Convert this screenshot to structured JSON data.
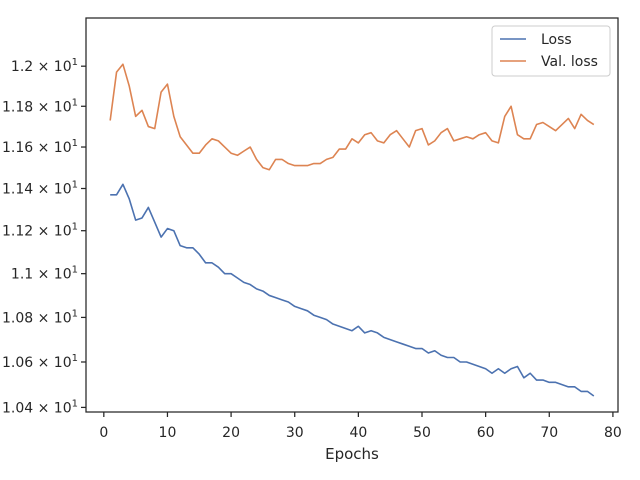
{
  "chart_data": {
    "type": "line",
    "title": "",
    "xlabel": "Epochs",
    "ylabel": "",
    "xlim": [
      -2.8,
      80.8
    ],
    "ylim": [
      10.38,
      12.245
    ],
    "y_scale": "log",
    "grid": false,
    "legend_position": "top-right",
    "x_ticks": [
      0,
      10,
      20,
      30,
      40,
      50,
      60,
      70,
      80
    ],
    "x_tick_labels": [
      "0",
      "10",
      "20",
      "30",
      "40",
      "50",
      "60",
      "70",
      "80"
    ],
    "y_ticks": [
      10.4,
      10.6,
      10.8,
      11.0,
      11.2,
      11.4,
      11.6,
      11.8,
      12.0
    ],
    "y_tick_labels": [
      {
        "mantissa": "1.04",
        "exp": "1"
      },
      {
        "mantissa": "1.06",
        "exp": "1"
      },
      {
        "mantissa": "1.08",
        "exp": "1"
      },
      {
        "mantissa": "1.1",
        "exp": "1"
      },
      {
        "mantissa": "1.12",
        "exp": "1"
      },
      {
        "mantissa": "1.14",
        "exp": "1"
      },
      {
        "mantissa": "1.16",
        "exp": "1"
      },
      {
        "mantissa": "1.18",
        "exp": "1"
      },
      {
        "mantissa": "1.2",
        "exp": "1"
      }
    ],
    "x": [
      1,
      2,
      3,
      4,
      5,
      6,
      7,
      8,
      9,
      10,
      11,
      12,
      13,
      14,
      15,
      16,
      17,
      18,
      19,
      20,
      21,
      22,
      23,
      24,
      25,
      26,
      27,
      28,
      29,
      30,
      31,
      32,
      33,
      34,
      35,
      36,
      37,
      38,
      39,
      40,
      41,
      42,
      43,
      44,
      45,
      46,
      47,
      48,
      49,
      50,
      51,
      52,
      53,
      54,
      55,
      56,
      57,
      58,
      59,
      60,
      61,
      62,
      63,
      64,
      65,
      66,
      67,
      68,
      69,
      70,
      71,
      72,
      73,
      74,
      75,
      76,
      77
    ],
    "series": [
      {
        "name": "Loss",
        "color": "#4c72b0",
        "values": [
          11.37,
          11.37,
          11.42,
          11.35,
          11.25,
          11.26,
          11.31,
          11.24,
          11.17,
          11.21,
          11.2,
          11.13,
          11.12,
          11.12,
          11.09,
          11.05,
          11.05,
          11.03,
          11.0,
          11.0,
          10.98,
          10.96,
          10.95,
          10.93,
          10.92,
          10.9,
          10.89,
          10.88,
          10.87,
          10.85,
          10.84,
          10.83,
          10.81,
          10.8,
          10.79,
          10.77,
          10.76,
          10.75,
          10.74,
          10.76,
          10.73,
          10.74,
          10.73,
          10.71,
          10.7,
          10.69,
          10.68,
          10.67,
          10.66,
          10.66,
          10.64,
          10.65,
          10.63,
          10.62,
          10.62,
          10.6,
          10.6,
          10.59,
          10.58,
          10.57,
          10.55,
          10.57,
          10.55,
          10.57,
          10.58,
          10.53,
          10.55,
          10.52,
          10.52,
          10.51,
          10.51,
          10.5,
          10.49,
          10.49,
          10.47,
          10.47,
          10.45
        ]
      },
      {
        "name": "Val. loss",
        "color": "#dd8452",
        "values": [
          11.73,
          11.97,
          12.01,
          11.9,
          11.75,
          11.78,
          11.7,
          11.69,
          11.87,
          11.91,
          11.75,
          11.65,
          11.61,
          11.57,
          11.57,
          11.61,
          11.64,
          11.63,
          11.6,
          11.57,
          11.56,
          11.58,
          11.6,
          11.54,
          11.5,
          11.49,
          11.54,
          11.54,
          11.52,
          11.51,
          11.51,
          11.51,
          11.52,
          11.52,
          11.54,
          11.55,
          11.59,
          11.59,
          11.64,
          11.62,
          11.66,
          11.67,
          11.63,
          11.62,
          11.66,
          11.68,
          11.64,
          11.6,
          11.68,
          11.69,
          11.61,
          11.63,
          11.67,
          11.69,
          11.63,
          11.64,
          11.65,
          11.64,
          11.66,
          11.67,
          11.63,
          11.62,
          11.75,
          11.8,
          11.66,
          11.64,
          11.64,
          11.71,
          11.72,
          11.7,
          11.68,
          11.71,
          11.74,
          11.69,
          11.76,
          11.73,
          11.71
        ]
      }
    ]
  }
}
